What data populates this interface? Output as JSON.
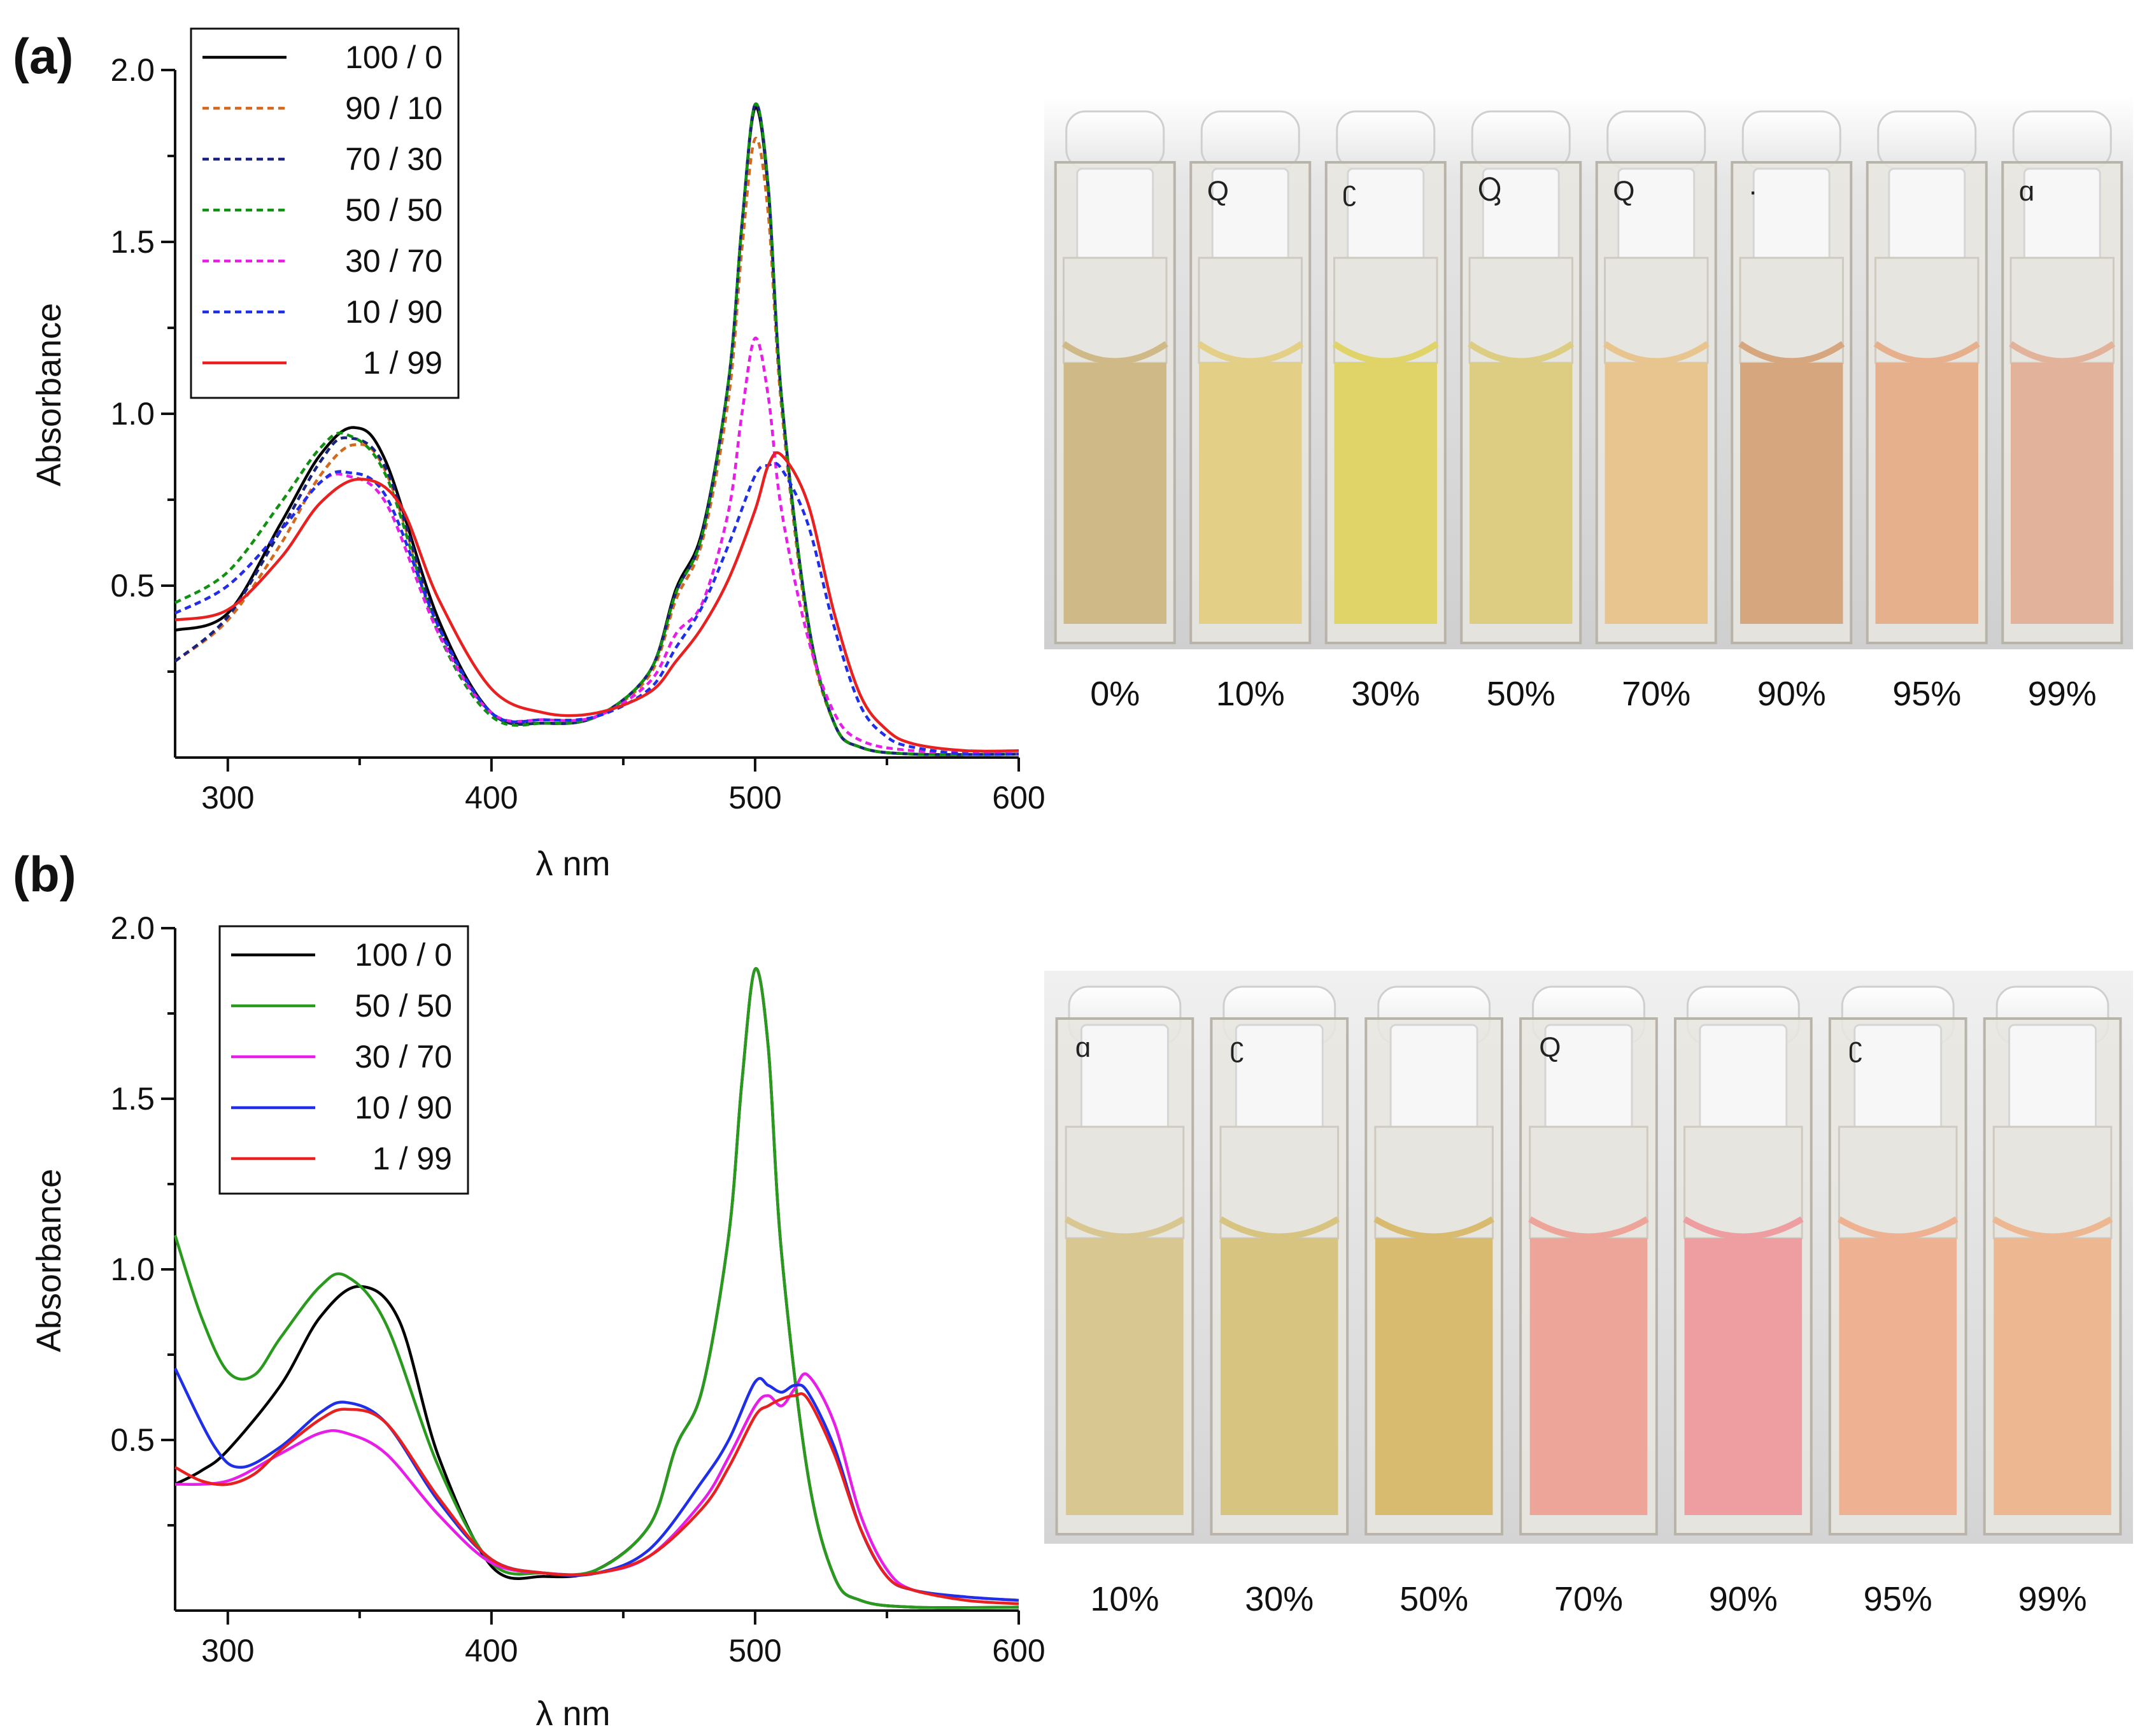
{
  "chart_data": [
    {
      "type": "line",
      "panel_label": "(a)",
      "xlabel": "λ  nm",
      "ylabel": "Absorbance",
      "xlim": [
        280,
        600
      ],
      "ylim": [
        0,
        2.0
      ],
      "x_ticks": [
        300,
        400,
        500,
        600
      ],
      "y_ticks": [
        0.5,
        1.0,
        1.5,
        2.0
      ],
      "x_tick_labels": [
        "300",
        "400",
        "500",
        "600"
      ],
      "y_tick_labels": [
        "0.5",
        "1.0",
        "1.5",
        "2.0"
      ],
      "legend_position": "top-left",
      "series": [
        {
          "name": "100 / 0",
          "color": "#000000",
          "dash": "solid",
          "x": [
            280,
            300,
            320,
            335,
            348,
            360,
            380,
            400,
            420,
            440,
            460,
            470,
            480,
            490,
            495,
            500,
            505,
            510,
            520,
            530,
            540,
            560,
            600
          ],
          "y": [
            0.37,
            0.42,
            0.68,
            0.88,
            0.96,
            0.86,
            0.4,
            0.13,
            0.1,
            0.12,
            0.25,
            0.49,
            0.66,
            1.1,
            1.55,
            1.89,
            1.65,
            1.05,
            0.4,
            0.1,
            0.03,
            0.01,
            0.01
          ]
        },
        {
          "name": "90 / 10",
          "color": "#d2691e",
          "dash": "dotted",
          "x": [
            280,
            300,
            320,
            335,
            348,
            360,
            380,
            400,
            420,
            440,
            460,
            470,
            480,
            490,
            495,
            500,
            505,
            510,
            520,
            530,
            540,
            560,
            600
          ],
          "y": [
            0.28,
            0.4,
            0.62,
            0.82,
            0.91,
            0.83,
            0.38,
            0.13,
            0.1,
            0.12,
            0.24,
            0.46,
            0.63,
            1.05,
            1.48,
            1.8,
            1.58,
            1.02,
            0.38,
            0.1,
            0.03,
            0.01,
            0.01
          ]
        },
        {
          "name": "70 / 30",
          "color": "#1a237e",
          "dash": "dotted",
          "x": [
            280,
            300,
            320,
            335,
            345,
            360,
            380,
            400,
            420,
            440,
            460,
            470,
            480,
            490,
            495,
            500,
            505,
            510,
            520,
            530,
            540,
            560,
            600
          ],
          "y": [
            0.28,
            0.41,
            0.66,
            0.86,
            0.93,
            0.84,
            0.38,
            0.13,
            0.1,
            0.12,
            0.25,
            0.48,
            0.65,
            1.1,
            1.55,
            1.9,
            1.66,
            1.05,
            0.4,
            0.1,
            0.03,
            0.01,
            0.01
          ]
        },
        {
          "name": "50 / 50",
          "color": "#119111",
          "dash": "dotted",
          "x": [
            280,
            300,
            320,
            335,
            345,
            360,
            380,
            400,
            420,
            440,
            460,
            470,
            480,
            490,
            495,
            500,
            505,
            510,
            520,
            530,
            540,
            560,
            600
          ],
          "y": [
            0.45,
            0.54,
            0.74,
            0.9,
            0.94,
            0.82,
            0.36,
            0.12,
            0.1,
            0.12,
            0.25,
            0.48,
            0.65,
            1.1,
            1.55,
            1.9,
            1.66,
            1.05,
            0.4,
            0.1,
            0.03,
            0.01,
            0.01
          ]
        },
        {
          "name": "30 / 70",
          "color": "#e81ee8",
          "dash": "dotted",
          "x": [
            280,
            300,
            320,
            335,
            345,
            360,
            380,
            400,
            420,
            440,
            460,
            470,
            480,
            490,
            495,
            500,
            505,
            510,
            520,
            530,
            540,
            560,
            600
          ],
          "y": [
            0.42,
            0.5,
            0.66,
            0.8,
            0.82,
            0.74,
            0.36,
            0.13,
            0.11,
            0.12,
            0.22,
            0.36,
            0.45,
            0.72,
            1.0,
            1.22,
            1.05,
            0.72,
            0.35,
            0.13,
            0.05,
            0.02,
            0.01
          ]
        },
        {
          "name": "10 / 90",
          "color": "#1f2ee8",
          "dash": "dotted",
          "x": [
            280,
            300,
            320,
            335,
            345,
            360,
            380,
            400,
            420,
            440,
            460,
            470,
            480,
            490,
            500,
            505,
            510,
            520,
            530,
            540,
            550,
            560,
            580,
            600
          ],
          "y": [
            0.42,
            0.5,
            0.66,
            0.8,
            0.83,
            0.76,
            0.38,
            0.13,
            0.11,
            0.12,
            0.2,
            0.32,
            0.44,
            0.62,
            0.82,
            0.85,
            0.84,
            0.68,
            0.38,
            0.15,
            0.06,
            0.03,
            0.01,
            0.01
          ]
        },
        {
          "name": "1 / 99",
          "color": "#e82020",
          "dash": "solid",
          "x": [
            280,
            300,
            320,
            335,
            350,
            365,
            380,
            400,
            420,
            440,
            460,
            470,
            480,
            490,
            500,
            505,
            510,
            520,
            530,
            540,
            550,
            560,
            580,
            600
          ],
          "y": [
            0.4,
            0.43,
            0.58,
            0.74,
            0.81,
            0.74,
            0.46,
            0.2,
            0.13,
            0.13,
            0.19,
            0.28,
            0.38,
            0.52,
            0.72,
            0.85,
            0.88,
            0.74,
            0.42,
            0.18,
            0.08,
            0.04,
            0.02,
            0.02
          ]
        }
      ]
    },
    {
      "type": "line",
      "panel_label": "(b)",
      "xlabel": "λ  nm",
      "ylabel": "Absorbance",
      "xlim": [
        280,
        600
      ],
      "ylim": [
        0,
        2.0
      ],
      "x_ticks": [
        300,
        400,
        500,
        600
      ],
      "y_ticks": [
        0.5,
        1.0,
        1.5,
        2.0
      ],
      "x_tick_labels": [
        "300",
        "400",
        "500",
        "600"
      ],
      "y_tick_labels": [
        "0.5",
        "1.0",
        "1.5",
        "2.0"
      ],
      "legend_position": "top-left",
      "series": [
        {
          "name": "100 / 0",
          "color": "#000000",
          "dash": "solid",
          "x": [
            280,
            290,
            300,
            320,
            335,
            350,
            365,
            380,
            400,
            420,
            440,
            460,
            470,
            480,
            490,
            495,
            500,
            505,
            510,
            520,
            530,
            540,
            560,
            600
          ],
          "y": [
            0.37,
            0.41,
            0.47,
            0.66,
            0.86,
            0.95,
            0.85,
            0.45,
            0.13,
            0.1,
            0.12,
            0.25,
            0.48,
            0.65,
            1.1,
            1.55,
            1.88,
            1.65,
            1.05,
            0.4,
            0.1,
            0.03,
            0.01,
            0.01
          ]
        },
        {
          "name": "50 / 50",
          "color": "#2a9a1f",
          "dash": "solid",
          "x": [
            280,
            290,
            300,
            310,
            320,
            335,
            345,
            360,
            380,
            400,
            420,
            440,
            460,
            470,
            480,
            490,
            495,
            500,
            505,
            510,
            520,
            530,
            540,
            560,
            600
          ],
          "y": [
            1.1,
            0.86,
            0.7,
            0.69,
            0.8,
            0.95,
            0.98,
            0.84,
            0.42,
            0.14,
            0.11,
            0.12,
            0.25,
            0.48,
            0.65,
            1.1,
            1.55,
            1.88,
            1.65,
            1.05,
            0.4,
            0.1,
            0.03,
            0.01,
            0.01
          ]
        },
        {
          "name": "30 / 70",
          "color": "#e81ee8",
          "dash": "solid",
          "x": [
            280,
            300,
            320,
            335,
            345,
            360,
            380,
            400,
            420,
            440,
            460,
            480,
            490,
            500,
            505,
            510,
            515,
            520,
            530,
            540,
            550,
            560,
            580,
            600
          ],
          "y": [
            0.37,
            0.38,
            0.46,
            0.52,
            0.52,
            0.46,
            0.28,
            0.14,
            0.11,
            0.11,
            0.16,
            0.32,
            0.45,
            0.6,
            0.63,
            0.6,
            0.65,
            0.69,
            0.55,
            0.28,
            0.12,
            0.06,
            0.04,
            0.03
          ]
        },
        {
          "name": "10 / 90",
          "color": "#1f2ee8",
          "dash": "solid",
          "x": [
            280,
            295,
            305,
            320,
            335,
            345,
            360,
            380,
            400,
            420,
            440,
            460,
            480,
            490,
            500,
            505,
            510,
            515,
            520,
            530,
            540,
            550,
            560,
            580,
            600
          ],
          "y": [
            0.71,
            0.48,
            0.42,
            0.48,
            0.58,
            0.61,
            0.55,
            0.32,
            0.15,
            0.11,
            0.11,
            0.18,
            0.38,
            0.5,
            0.67,
            0.66,
            0.64,
            0.66,
            0.64,
            0.48,
            0.24,
            0.1,
            0.06,
            0.04,
            0.03
          ]
        },
        {
          "name": "1 / 99",
          "color": "#e82020",
          "dash": "solid",
          "x": [
            280,
            290,
            300,
            310,
            320,
            335,
            345,
            360,
            380,
            400,
            420,
            440,
            460,
            480,
            490,
            500,
            505,
            510,
            515,
            520,
            530,
            540,
            550,
            560,
            580,
            600
          ],
          "y": [
            0.42,
            0.38,
            0.37,
            0.4,
            0.47,
            0.56,
            0.59,
            0.55,
            0.33,
            0.15,
            0.11,
            0.11,
            0.16,
            0.3,
            0.42,
            0.57,
            0.6,
            0.62,
            0.63,
            0.62,
            0.46,
            0.24,
            0.1,
            0.06,
            0.03,
            0.02
          ]
        }
      ]
    }
  ],
  "photos": [
    {
      "labels": [
        "0%",
        "10%",
        "30%",
        "50%",
        "70%",
        "90%",
        "95%",
        "99%"
      ],
      "liquid_colors": [
        "#cfb987",
        "#e4cf86",
        "#e0d468",
        "#ddcd82",
        "#e8c58e",
        "#d6a67f",
        "#e7b08c",
        "#e3b29b"
      ],
      "cap_marks": [
        "",
        "Q",
        "ʗ",
        "Ⴓ",
        "Q",
        "·",
        "",
        "ɑ"
      ]
    },
    {
      "labels": [
        "10%",
        "30%",
        "50%",
        "70%",
        "90%",
        "95%",
        "99%"
      ],
      "liquid_colors": [
        "#d9c792",
        "#d7c480",
        "#d8bb6e",
        "#eda59a",
        "#ee9ea0",
        "#eeb293",
        "#ecb791"
      ],
      "cap_marks": [
        "ɑ",
        "ʗ",
        "",
        "Q",
        "",
        "ʗ",
        ""
      ]
    }
  ]
}
